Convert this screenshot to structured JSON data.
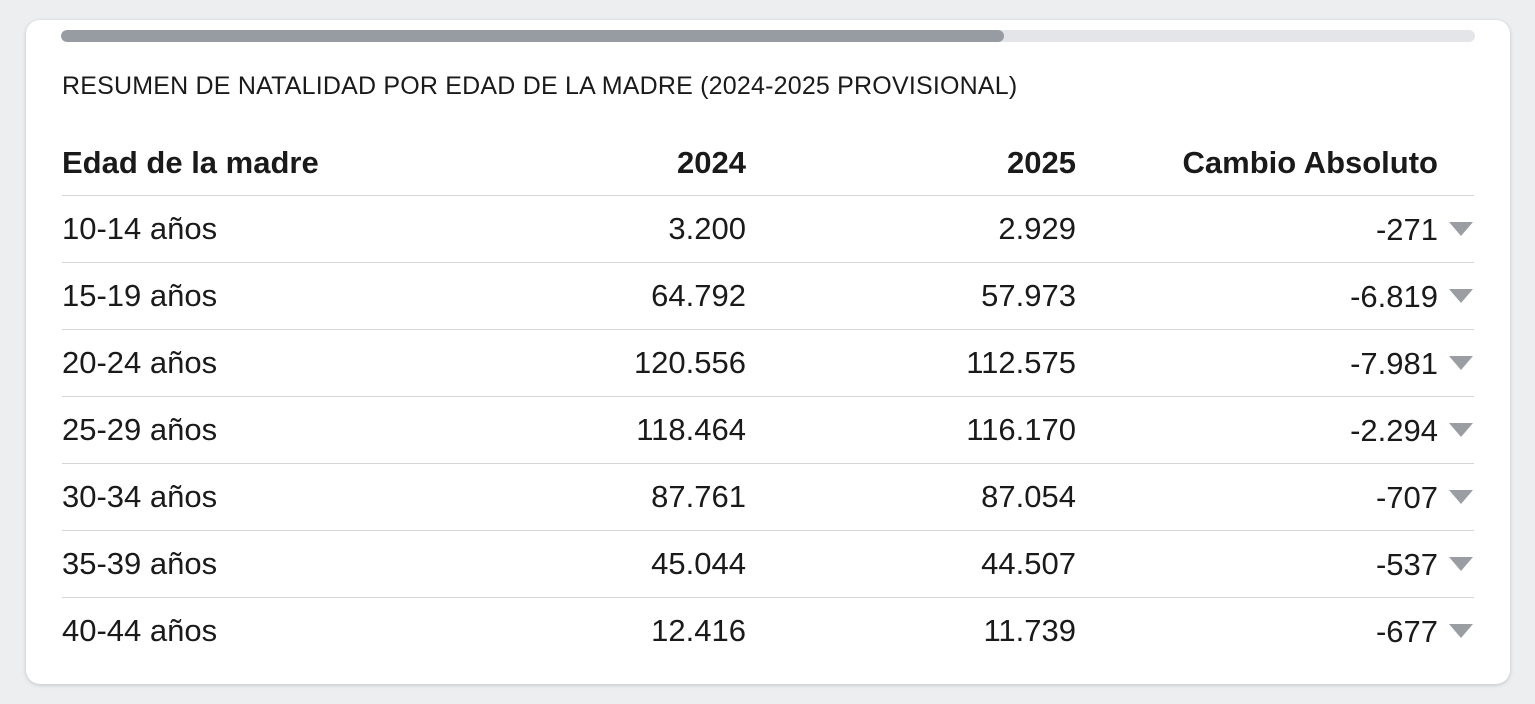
{
  "progress": {
    "fraction": 0.667,
    "fill_color": "#979ca2",
    "track_color": "#e3e5e8"
  },
  "title": "RESUMEN DE NATALIDAD POR EDAD DE LA MADRE (2024-2025 PROVISIONAL)",
  "table": {
    "headers": [
      "Edad de la madre",
      "2024",
      "2025",
      "Cambio Absoluto"
    ],
    "rows": [
      {
        "age": "10-14 años",
        "y2024": "3.200",
        "y2025": "2.929",
        "change": "-271",
        "trend_icon": "triangle-down-icon"
      },
      {
        "age": "15-19 años",
        "y2024": "64.792",
        "y2025": "57.973",
        "change": "-6.819",
        "trend_icon": "triangle-down-icon"
      },
      {
        "age": "20-24 años",
        "y2024": "120.556",
        "y2025": "112.575",
        "change": "-7.981",
        "trend_icon": "triangle-down-icon"
      },
      {
        "age": "25-29 años",
        "y2024": "118.464",
        "y2025": "116.170",
        "change": "-2.294",
        "trend_icon": "triangle-down-icon"
      },
      {
        "age": "30-34 años",
        "y2024": "87.761",
        "y2025": "87.054",
        "change": "-707",
        "trend_icon": "triangle-down-icon"
      },
      {
        "age": "35-39 años",
        "y2024": "45.044",
        "y2025": "44.507",
        "change": "-537",
        "trend_icon": "triangle-down-icon"
      },
      {
        "age": "40-44 años",
        "y2024": "12.416",
        "y2025": "11.739",
        "change": "-677",
        "trend_icon": "triangle-down-icon"
      }
    ]
  },
  "colors": {
    "icon": "#9a9ea3",
    "border": "#d4d6d9",
    "text": "#1a1a1a"
  }
}
